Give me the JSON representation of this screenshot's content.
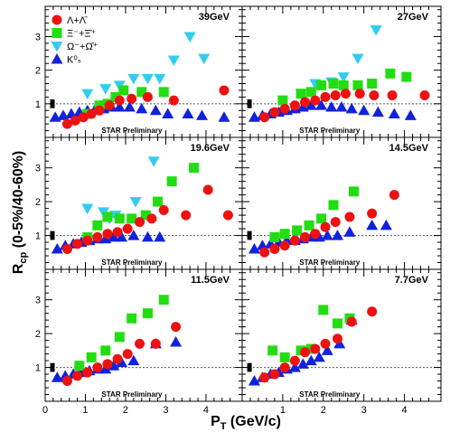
{
  "ylabel_main": "R",
  "ylabel_sub": "cp",
  "ylabel_rest": " (0-5%/40-60%)",
  "xlabel_main": "P",
  "xlabel_sub": "T",
  "xlabel_rest": " (GeV/c)",
  "preliminary": "STAR Preliminary",
  "x_ticks": [
    "0",
    "1",
    "2",
    "3",
    "4"
  ],
  "y_ticks": [
    "1",
    "2",
    "3"
  ],
  "colors": {
    "lambda": "#ee1111",
    "xi": "#22dd11",
    "omega": "#33ccee",
    "k0s": "#1122dd",
    "reference_line": "#555555"
  },
  "legend": [
    {
      "key": "lambda",
      "label": "Λ+Λ̄",
      "marker": "circle"
    },
    {
      "key": "xi",
      "label": "Ξ⁻+Ξ̄⁺",
      "marker": "square"
    },
    {
      "key": "omega",
      "label": "Ω⁻+Ω̄⁺",
      "marker": "triangle-down"
    },
    {
      "key": "k0s",
      "label": "K⁰ₛ",
      "marker": "triangle-up"
    }
  ],
  "chart_data": [
    {
      "type": "scatter",
      "title": "39GeV",
      "xlim": [
        0,
        4.9
      ],
      "ylim": [
        0,
        3.9
      ],
      "reference_y": 1,
      "series": [
        {
          "name": "Λ+Λ̄",
          "key": "lambda",
          "x": [
            0.55,
            0.75,
            0.95,
            1.15,
            1.35,
            1.6,
            1.85,
            2.15,
            2.55,
            3.2,
            4.45
          ],
          "y": [
            0.4,
            0.5,
            0.6,
            0.7,
            0.8,
            0.95,
            1.1,
            1.15,
            1.2,
            1.1,
            1.4
          ]
        },
        {
          "name": "Ξ⁻+Ξ̄⁺",
          "key": "xi",
          "x": [
            1.05,
            1.35,
            1.55,
            1.75,
            1.95,
            2.4,
            2.95
          ],
          "y": [
            0.7,
            0.95,
            1.0,
            1.2,
            1.4,
            1.35,
            1.35
          ]
        },
        {
          "name": "Ω⁻+Ω̄⁺",
          "key": "omega",
          "x": [
            1.05,
            1.5,
            1.85,
            2.2,
            2.55,
            2.85,
            3.2,
            3.6,
            3.95
          ],
          "y": [
            1.3,
            1.45,
            1.55,
            1.75,
            1.75,
            1.75,
            2.3,
            3.0,
            2.35
          ]
        },
        {
          "name": "K⁰ₛ",
          "key": "k0s",
          "x": [
            0.25,
            0.45,
            0.65,
            0.85,
            1.05,
            1.25,
            1.45,
            1.65,
            1.85,
            2.1,
            2.4,
            2.75,
            3.05,
            3.55,
            3.9,
            4.45
          ],
          "y": [
            0.6,
            0.65,
            0.7,
            0.75,
            0.8,
            0.85,
            0.85,
            0.9,
            0.9,
            0.9,
            0.85,
            0.8,
            0.7,
            0.7,
            0.65,
            0.6
          ]
        }
      ]
    },
    {
      "type": "scatter",
      "title": "27GeV",
      "xlim": [
        0,
        4.9
      ],
      "ylim": [
        0,
        3.9
      ],
      "reference_y": 1,
      "series": [
        {
          "name": "Λ+Λ̄",
          "key": "lambda",
          "x": [
            0.55,
            0.8,
            1.05,
            1.3,
            1.55,
            1.8,
            2.05,
            2.3,
            2.55,
            2.9,
            3.25,
            3.7,
            4.5
          ],
          "y": [
            0.6,
            0.75,
            0.85,
            0.95,
            1.05,
            1.1,
            1.2,
            1.25,
            1.3,
            1.3,
            1.25,
            1.25,
            1.25
          ]
        },
        {
          "name": "Ξ⁻+Ξ̄⁺",
          "key": "xi",
          "x": [
            1.0,
            1.45,
            1.7,
            1.95,
            2.25,
            2.5,
            2.85,
            3.2,
            3.65,
            4.05
          ],
          "y": [
            1.1,
            1.3,
            1.35,
            1.55,
            1.6,
            1.55,
            1.55,
            1.6,
            1.9,
            1.8
          ]
        },
        {
          "name": "Ω⁻+Ω̄⁺",
          "key": "omega",
          "x": [
            1.45,
            1.8,
            2.2,
            2.5,
            2.85,
            3.3
          ],
          "y": [
            1.3,
            1.6,
            1.65,
            1.8,
            2.35,
            3.2
          ]
        },
        {
          "name": "K⁰ₛ",
          "key": "k0s",
          "x": [
            0.3,
            0.5,
            0.7,
            0.9,
            1.1,
            1.3,
            1.5,
            1.7,
            1.95,
            2.2,
            2.45,
            2.7,
            3.0,
            3.35,
            3.75,
            4.15
          ],
          "y": [
            0.6,
            0.65,
            0.7,
            0.75,
            0.8,
            0.85,
            0.9,
            0.95,
            0.95,
            0.9,
            0.9,
            0.85,
            0.8,
            0.75,
            0.7,
            0.65
          ]
        }
      ]
    },
    {
      "type": "scatter",
      "title": "19.6GeV",
      "xlim": [
        0,
        4.9
      ],
      "ylim": [
        0,
        3.9
      ],
      "reference_y": 1,
      "series": [
        {
          "name": "Λ+Λ̄",
          "key": "lambda",
          "x": [
            0.55,
            0.8,
            1.05,
            1.3,
            1.55,
            1.8,
            2.05,
            2.35,
            2.65,
            2.95,
            3.5,
            4.05,
            4.55
          ],
          "y": [
            0.6,
            0.75,
            0.85,
            0.95,
            1.05,
            1.1,
            1.2,
            1.4,
            1.5,
            1.75,
            1.6,
            2.35,
            1.6
          ]
        },
        {
          "name": "Ξ⁻+Ξ̄⁺",
          "key": "xi",
          "x": [
            1.05,
            1.3,
            1.55,
            1.85,
            2.15,
            2.5,
            2.8,
            3.15,
            3.7
          ],
          "y": [
            0.95,
            1.3,
            1.55,
            1.5,
            1.5,
            1.6,
            2.0,
            2.6,
            3.0
          ]
        },
        {
          "name": "Ω⁻+Ω̄⁺",
          "key": "omega",
          "x": [
            1.05,
            1.45,
            1.6,
            1.75,
            2.25,
            2.7
          ],
          "y": [
            1.8,
            1.7,
            1.5,
            1.6,
            2.0,
            3.2
          ]
        },
        {
          "name": "K⁰ₛ",
          "key": "k0s",
          "x": [
            0.3,
            0.5,
            0.7,
            0.9,
            1.1,
            1.3,
            1.5,
            1.7,
            1.9,
            2.2,
            2.55,
            2.85
          ],
          "y": [
            0.6,
            0.7,
            0.75,
            0.8,
            0.85,
            0.9,
            0.9,
            0.95,
            0.95,
            1.0,
            0.95,
            0.95
          ]
        }
      ]
    },
    {
      "type": "scatter",
      "title": "14.5GeV",
      "xlim": [
        0,
        4.9
      ],
      "ylim": [
        0,
        3.9
      ],
      "reference_y": 1,
      "series": [
        {
          "name": "Λ+Λ̄",
          "key": "lambda",
          "x": [
            0.55,
            0.8,
            1.05,
            1.3,
            1.55,
            1.8,
            2.05,
            2.3,
            2.65,
            3.2,
            3.75
          ],
          "y": [
            0.5,
            0.6,
            0.7,
            0.85,
            0.95,
            1.05,
            1.25,
            1.4,
            1.55,
            1.65,
            2.2
          ]
        },
        {
          "name": "Ξ⁻+Ξ̄⁺",
          "key": "xi",
          "x": [
            0.8,
            1.05,
            1.35,
            1.65,
            1.95,
            2.25,
            2.75
          ],
          "y": [
            0.95,
            1.05,
            1.15,
            1.3,
            1.5,
            1.9,
            2.3
          ]
        },
        {
          "name": "K⁰ₛ",
          "key": "k0s",
          "x": [
            0.3,
            0.5,
            0.7,
            0.9,
            1.1,
            1.3,
            1.5,
            1.7,
            1.9,
            2.1,
            2.35,
            2.65,
            3.2,
            3.55
          ],
          "y": [
            0.6,
            0.7,
            0.75,
            0.8,
            0.85,
            0.85,
            0.9,
            0.95,
            0.95,
            1.0,
            1.0,
            1.1,
            1.3,
            1.3
          ]
        }
      ]
    },
    {
      "type": "scatter",
      "title": "11.5GeV",
      "xlim": [
        0,
        4.9
      ],
      "ylim": [
        0,
        3.9
      ],
      "reference_y": 1,
      "series": [
        {
          "name": "Λ+Λ̄",
          "key": "lambda",
          "x": [
            0.55,
            0.8,
            1.05,
            1.3,
            1.55,
            1.8,
            2.05,
            2.35,
            2.75,
            3.25
          ],
          "y": [
            0.6,
            0.75,
            0.85,
            1.0,
            1.1,
            1.25,
            1.4,
            1.7,
            1.7,
            2.2
          ]
        },
        {
          "name": "Ξ⁻+Ξ̄⁺",
          "key": "xi",
          "x": [
            0.85,
            1.15,
            1.5,
            1.85,
            2.15,
            2.55,
            2.95
          ],
          "y": [
            1.05,
            1.3,
            1.5,
            1.9,
            2.45,
            2.6,
            3.0
          ]
        },
        {
          "name": "K⁰ₛ",
          "key": "k0s",
          "x": [
            0.3,
            0.5,
            0.7,
            0.9,
            1.1,
            1.3,
            1.5,
            1.7,
            1.9,
            2.2,
            2.75,
            3.25
          ],
          "y": [
            0.7,
            0.75,
            0.8,
            0.85,
            0.9,
            0.95,
            0.95,
            1.05,
            1.15,
            1.2,
            1.7,
            1.75
          ]
        }
      ]
    },
    {
      "type": "scatter",
      "title": "7.7GeV",
      "xlim": [
        0,
        4.9
      ],
      "ylim": [
        0,
        3.9
      ],
      "reference_y": 1,
      "series": [
        {
          "name": "Λ+Λ̄",
          "key": "lambda",
          "x": [
            0.55,
            0.8,
            1.05,
            1.3,
            1.55,
            1.8,
            2.05,
            2.35,
            2.7,
            3.2
          ],
          "y": [
            0.7,
            0.8,
            1.0,
            1.2,
            1.45,
            1.55,
            1.7,
            1.85,
            2.35,
            2.65
          ]
        },
        {
          "name": "Ξ⁻+Ξ̄⁺",
          "key": "xi",
          "x": [
            0.75,
            1.05,
            1.45,
            1.7,
            2.0,
            2.35,
            2.65
          ],
          "y": [
            1.5,
            1.3,
            1.5,
            1.55,
            2.7,
            2.3,
            2.45
          ]
        },
        {
          "name": "K⁰ₛ",
          "key": "k0s",
          "x": [
            0.3,
            0.5,
            0.7,
            0.9,
            1.1,
            1.3,
            1.5,
            1.7,
            1.9,
            2.1,
            2.4,
            2.7
          ],
          "y": [
            0.6,
            0.7,
            0.8,
            0.85,
            0.95,
            1.0,
            1.1,
            1.2,
            1.3,
            1.5,
            1.7,
            2.4
          ]
        }
      ]
    }
  ]
}
